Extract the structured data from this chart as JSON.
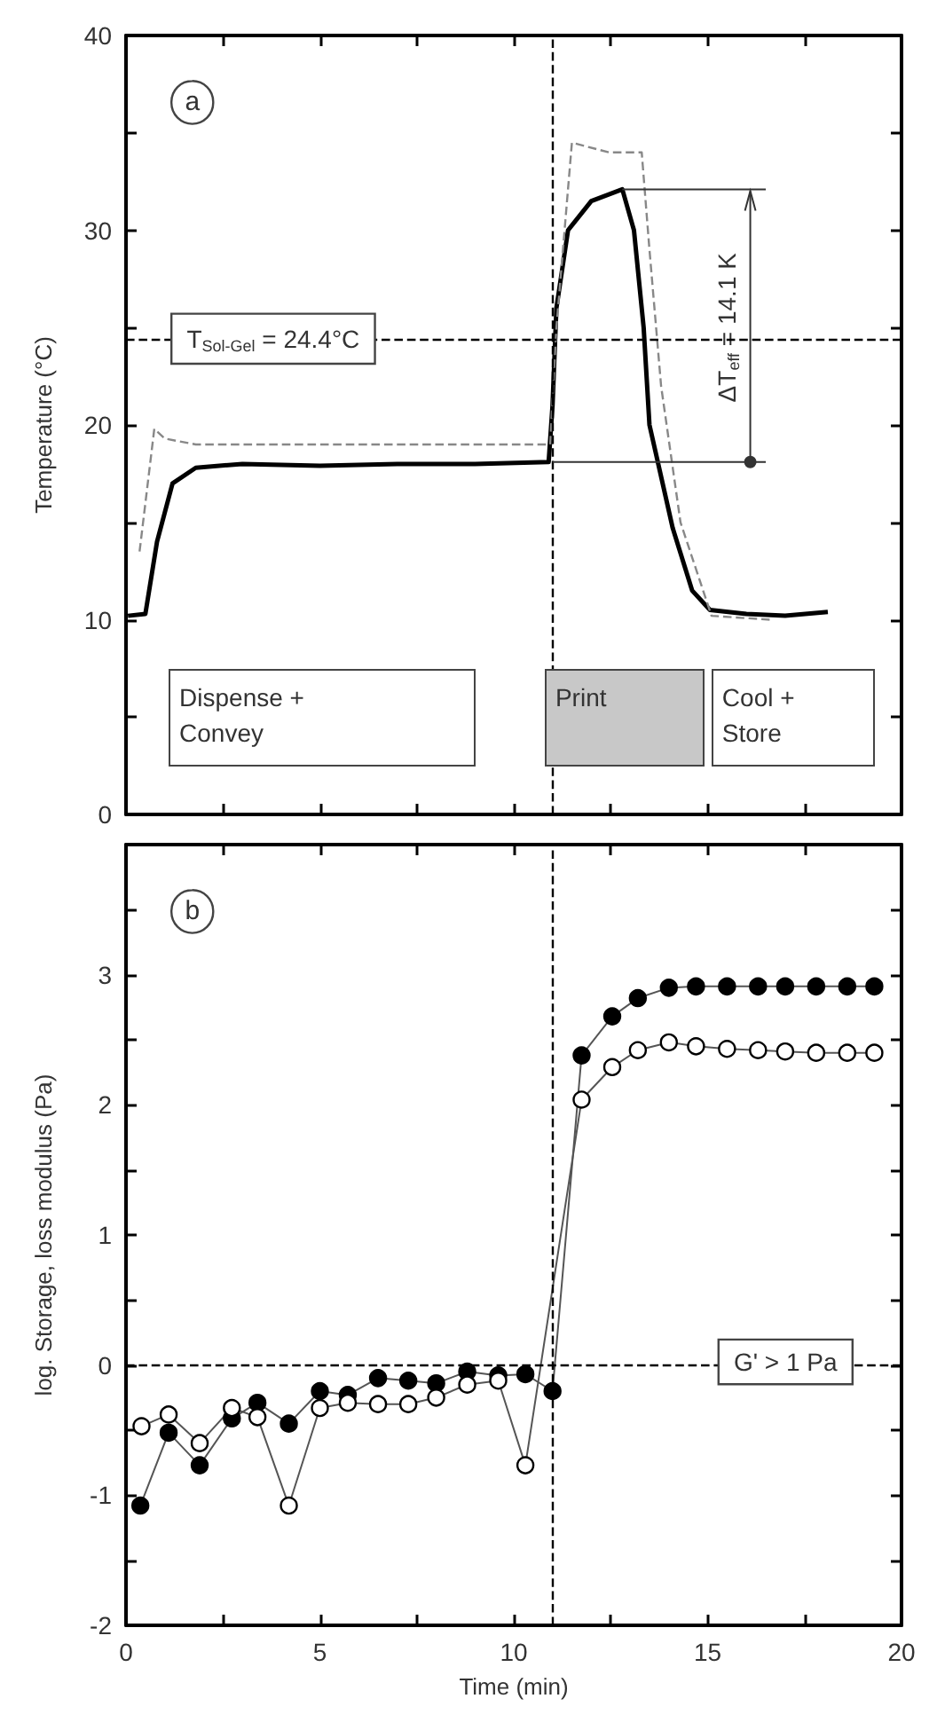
{
  "chart_data": [
    {
      "type": "line",
      "ylabel": "Temperature (°C)",
      "xlim": [
        0,
        20
      ],
      "xticks": [
        0,
        {
          "value": 2.5,
          "label": null
        },
        5,
        {
          "value": 7.5,
          "label": null
        },
        10,
        {
          "value": 12.5,
          "label": null
        },
        15,
        {
          "value": 17.5,
          "label": null
        },
        20
      ],
      "ylim": [
        0,
        40
      ],
      "yticks": [
        0,
        {
          "value": 5,
          "label": null
        },
        10,
        {
          "value": 15,
          "label": null
        },
        20,
        {
          "value": 25,
          "label": null
        },
        30,
        {
          "value": 35,
          "label": null
        },
        40
      ],
      "tick_labels": "y",
      "marker": "none",
      "series": [
        {
          "color": "#000000",
          "line_style": "solid",
          "x": [
            0.05,
            0.5,
            0.8,
            1.2,
            1.8,
            3,
            5,
            7,
            9,
            10.9,
            11.0,
            11.1,
            11.4,
            12,
            12.8,
            13.1,
            13.35,
            13.5,
            14.1,
            14.6,
            15.06,
            16,
            17,
            18.1
          ],
          "values": [
            10.2,
            10.3,
            14,
            17,
            17.8,
            18,
            17.9,
            18,
            18,
            18.1,
            21,
            26,
            30,
            31.5,
            32.1,
            30,
            25,
            20,
            14.7,
            11.5,
            10.5,
            10.3,
            10.2,
            10.4
          ]
        },
        {
          "color": "#888888",
          "line_style": "dashed",
          "x": [
            0.35,
            0.73,
            1.0,
            1.8,
            5,
            10.94,
            11.1,
            11.5,
            12.45,
            13.3,
            13.5,
            13.8,
            14.3,
            15.1,
            16.6
          ],
          "values": [
            13.5,
            19.8,
            19.3,
            19,
            19,
            19,
            25,
            34.5,
            34,
            34,
            29,
            22,
            15,
            10.2,
            10
          ]
        }
      ],
      "ref_lines": [
        {
          "axis": "x",
          "value": 11,
          "line_style": "dashed"
        },
        {
          "axis": "y",
          "value": 24.4,
          "label": "T$_{Sol-Gel}$ = 24.4°C",
          "line_style": "dashed"
        }
      ],
      "annotations": [
        "a",
        "ΔT$_{eff}$ = 14.1 K",
        "Dispense + Convey",
        "Print",
        "Cool + Store"
      ]
    },
    {
      "type": "line",
      "xlabel": "Time (min)",
      "ylabel": "log. Storage, loss modulus (Pa)",
      "xlim": [
        0,
        20
      ],
      "xticks": [
        0,
        {
          "value": 2.5,
          "label": null
        },
        5,
        {
          "value": 7.5,
          "label": null
        },
        10,
        {
          "value": 12.5,
          "label": null
        },
        15,
        {
          "value": 17.5,
          "label": null
        },
        20
      ],
      "ylim": [
        -2,
        4
      ],
      "yticks": [
        -2,
        {
          "value": -1.5,
          "label": null
        },
        -1,
        {
          "value": -0.5,
          "label": null
        },
        0,
        {
          "value": 0.5,
          "label": null
        },
        1,
        {
          "value": 1.5,
          "label": null
        },
        2,
        {
          "value": 2.5,
          "label": null
        },
        3,
        {
          "value": 3.5,
          "label": null
        },
        {
          "value": 4,
          "label": null
        }
      ],
      "marker": "circle",
      "series": [
        {
          "color": "#000000",
          "x": [
            0.37,
            1.1,
            1.9,
            2.73,
            3.39,
            4.2,
            5.0,
            5.72,
            6.5,
            7.28,
            8.0,
            8.8,
            9.6,
            10.3,
            11.0,
            11.75,
            12.54,
            13.2,
            14.0,
            14.7,
            15.5,
            16.3,
            17.0,
            17.8,
            18.6,
            19.3
          ],
          "values": [
            -1.08,
            -0.52,
            -0.77,
            -0.41,
            -0.29,
            -0.45,
            -0.2,
            -0.23,
            -0.1,
            -0.12,
            -0.14,
            -0.05,
            -0.08,
            -0.07,
            -0.2,
            2.38,
            2.68,
            2.82,
            2.9,
            2.91,
            2.91,
            2.91,
            2.91,
            2.91,
            2.91,
            2.91
          ]
        },
        {
          "color": "#ffffff",
          "x": [
            0.4,
            1.1,
            1.9,
            2.73,
            3.39,
            4.2,
            5.0,
            5.72,
            6.5,
            7.28,
            8.0,
            8.8,
            9.6,
            10.3,
            11.75,
            12.54,
            13.2,
            14.0,
            14.7,
            15.5,
            16.3,
            17.0,
            17.8,
            18.6,
            19.3
          ],
          "values": [
            -0.47,
            -0.38,
            -0.6,
            -0.33,
            -0.4,
            -1.08,
            -0.33,
            -0.29,
            -0.3,
            -0.3,
            -0.25,
            -0.15,
            -0.12,
            -0.77,
            2.04,
            2.29,
            2.42,
            2.48,
            2.45,
            2.43,
            2.42,
            2.41,
            2.4,
            2.4,
            2.4
          ]
        }
      ],
      "ref_lines": [
        {
          "axis": "x",
          "value": 11,
          "line_style": "dashed"
        },
        {
          "axis": "y",
          "value": 0,
          "label": "G' > 1 Pa",
          "line_style": "dashed"
        }
      ],
      "annotations": [
        "b"
      ]
    }
  ]
}
